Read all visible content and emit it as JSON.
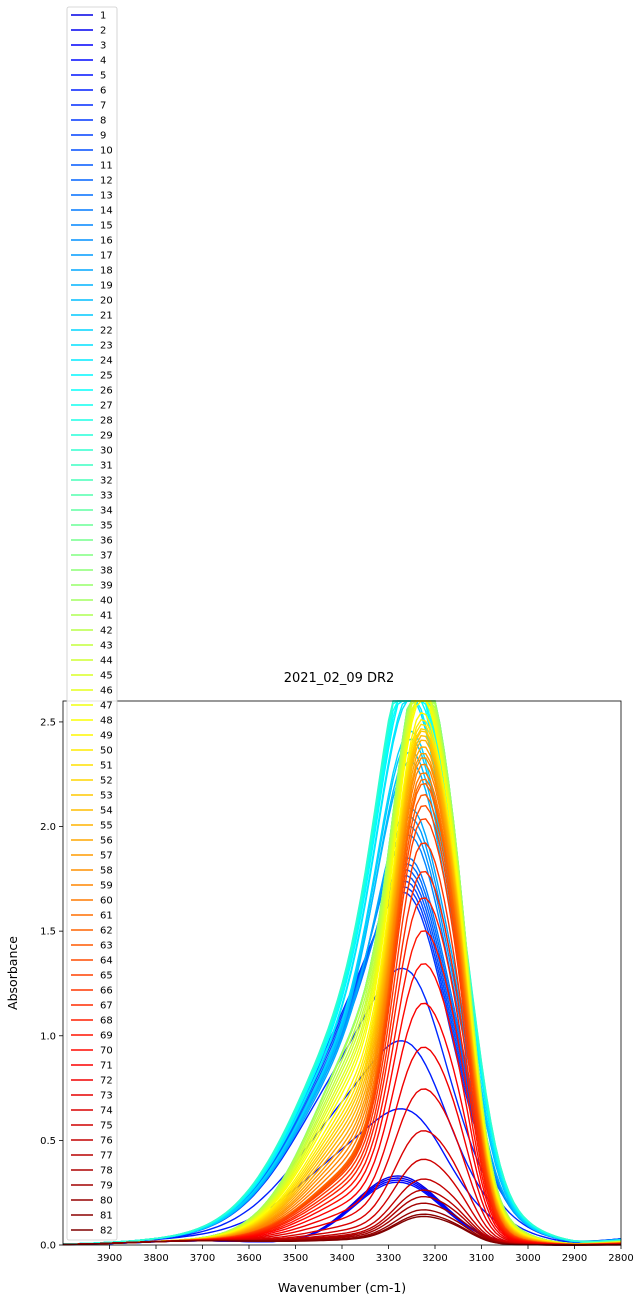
{
  "chart_data": {
    "type": "line",
    "title": "2021_02_09 DR2",
    "xlabel": "Wavenumber (cm-1)",
    "ylabel": "Absorbance",
    "xlim": [
      4000,
      2800
    ],
    "x_reversed": true,
    "ylim": [
      0.0,
      2.6
    ],
    "x_ticks": [
      3900,
      3800,
      3700,
      3600,
      3500,
      3400,
      3300,
      3200,
      3100,
      3000,
      2900,
      2800
    ],
    "x_tick_labels": [
      "3900",
      "3800",
      "3700",
      "3600",
      "3500",
      "3400",
      "3300",
      "3200",
      "3100",
      "3000",
      "2900",
      "2800"
    ],
    "y_ticks": [
      0.0,
      0.5,
      1.0,
      1.5,
      2.0,
      2.5
    ],
    "y_tick_labels": [
      "0.0",
      "0.5",
      "1.0",
      "1.5",
      "2.0",
      "2.5"
    ],
    "grid": false,
    "legend_placement": "upper-left, extends above the plot area",
    "colormap": "jet",
    "series_names": [
      "1",
      "2",
      "3",
      "4",
      "5",
      "6",
      "7",
      "8",
      "9",
      "10",
      "11",
      "12",
      "13",
      "14",
      "15",
      "16",
      "17",
      "18",
      "19",
      "20",
      "21",
      "22",
      "23",
      "24",
      "25",
      "26",
      "27",
      "28",
      "29",
      "30",
      "31",
      "32",
      "33",
      "34",
      "35",
      "36",
      "37",
      "38",
      "39",
      "40",
      "41",
      "42",
      "43",
      "44",
      "45",
      "46",
      "47",
      "48",
      "49",
      "50",
      "51",
      "52",
      "53",
      "54",
      "55",
      "56",
      "57",
      "58",
      "59",
      "60",
      "61",
      "62",
      "63",
      "64",
      "65",
      "66",
      "67",
      "68",
      "69",
      "70",
      "71",
      "72",
      "73",
      "74",
      "75",
      "76",
      "77",
      "78",
      "79",
      "80",
      "81",
      "82"
    ],
    "series_peaks": [
      0.33,
      0.32,
      0.31,
      0.3,
      0.62,
      0.93,
      1.25,
      1.58,
      1.59,
      1.6,
      1.61,
      1.62,
      1.63,
      1.64,
      1.72,
      1.74,
      1.76,
      1.78,
      1.95,
      1.97,
      2.02,
      2.05,
      2.18,
      2.2,
      2.26,
      2.29,
      2.32,
      2.35,
      2.38,
      2.39,
      2.4,
      2.41,
      2.41,
      2.42,
      2.42,
      2.42,
      2.42,
      2.41,
      2.41,
      2.4,
      2.4,
      2.39,
      2.38,
      2.38,
      2.37,
      2.37,
      2.36,
      2.35,
      2.3,
      2.28,
      2.27,
      2.26,
      2.26,
      2.25,
      2.24,
      2.22,
      2.2,
      2.19,
      2.17,
      2.14,
      2.12,
      2.1,
      2.05,
      2.0,
      1.94,
      1.83,
      1.7,
      1.58,
      1.43,
      1.28,
      1.1,
      0.9,
      0.71,
      0.52,
      0.39,
      0.3,
      0.25,
      0.22,
      0.19,
      0.16,
      0.14,
      0.13
    ]
  }
}
